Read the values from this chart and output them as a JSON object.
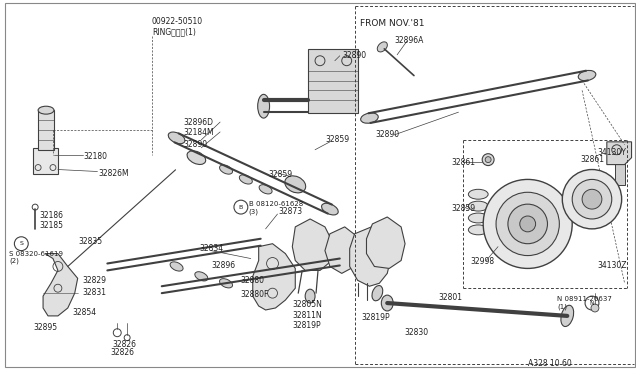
{
  "bg_color": "#ffffff",
  "line_color": "#404040",
  "text_color": "#202020",
  "fig_width": 6.4,
  "fig_height": 3.72,
  "dpi": 100,
  "from_note": "FROM NOV.'81",
  "diagram_note": "A328 10 60",
  "ring_label": "00922-50510\nRINGリング(1)",
  "bolt_b": "B 08120-61628\n(3)",
  "bolt_s": "S 08320-61619\n(2)",
  "bolt_n": "N 08911-20637\n(1)"
}
